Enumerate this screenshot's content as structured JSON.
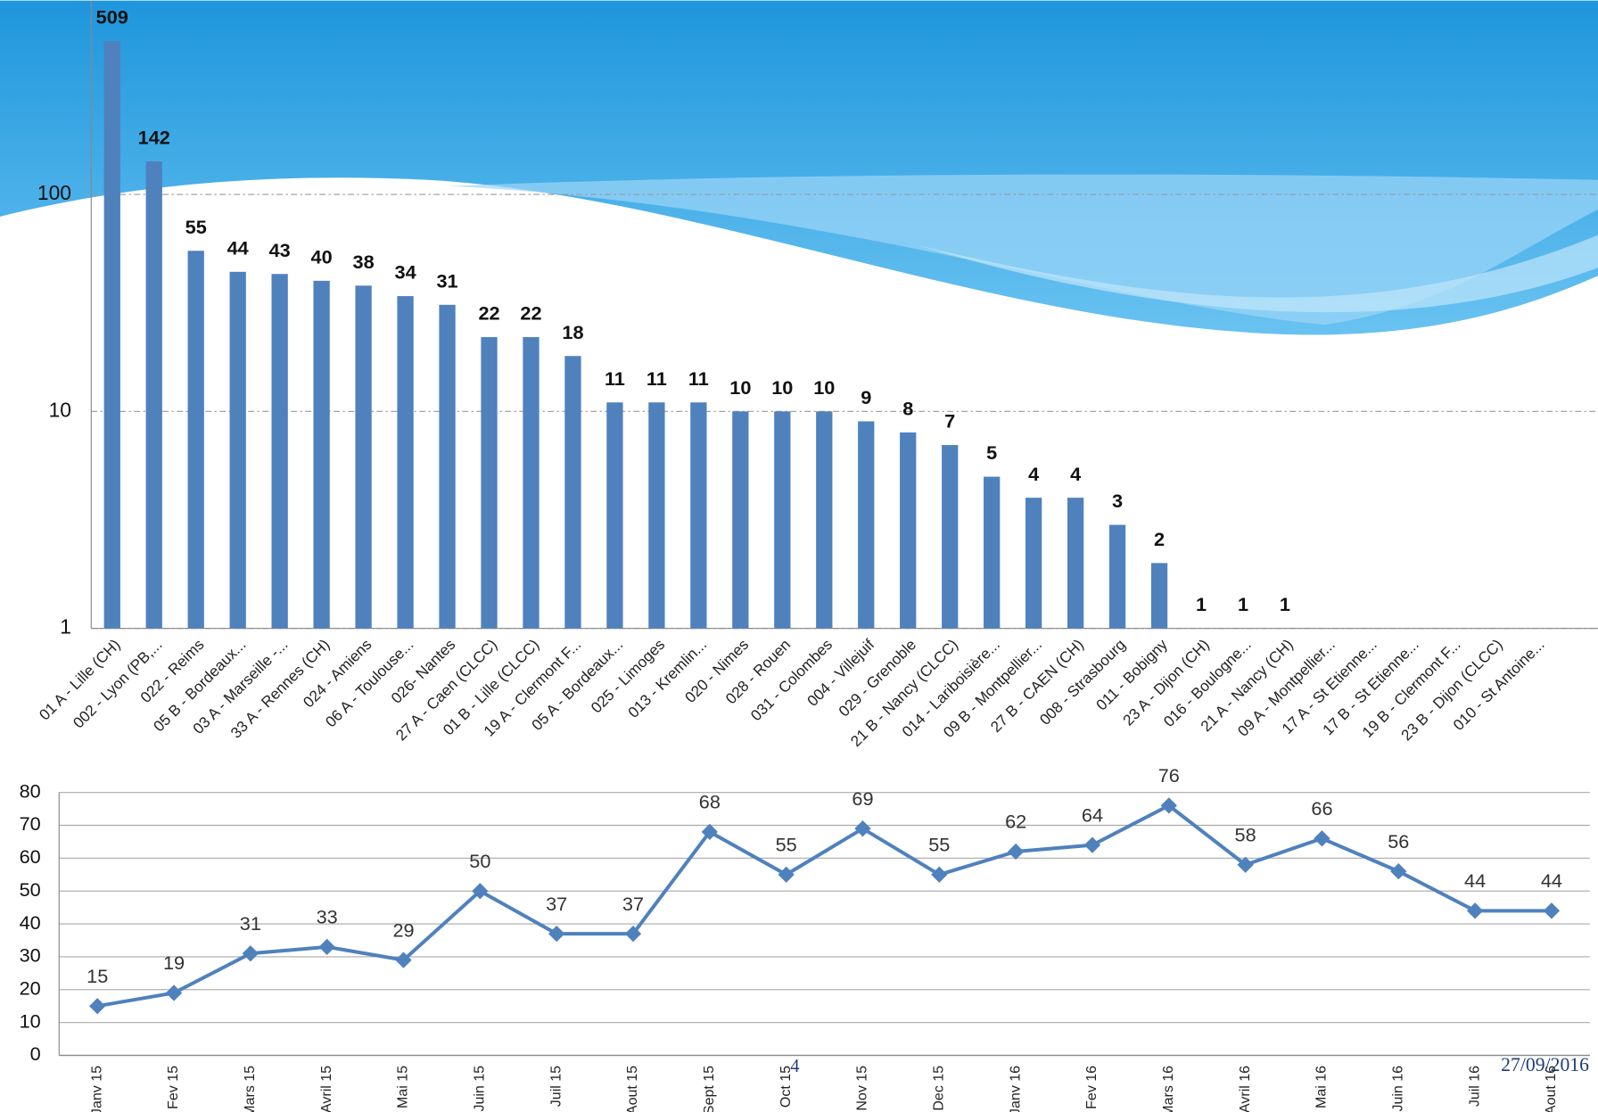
{
  "chart_data": [
    {
      "type": "bar",
      "log_scale": true,
      "grid": true,
      "color": "#4f81bd",
      "ylim": [
        1,
        800
      ],
      "yticks": [
        1,
        10,
        100
      ],
      "categories": [
        "01 A - Lille (CH)",
        "002 - Lyon (PB,...",
        "022 - Reims",
        "05 B - Bordeaux...",
        "03 A - Marseille -...",
        "33 A - Rennes (CH)",
        "024 - Amiens",
        "06 A - Toulouse...",
        "026- Nantes",
        "27 A - Caen (CLCC)",
        "01 B - Lille (CLCC)",
        "19 A - Clermont F...",
        "05 A - Bordeaux...",
        "025 - Limoges",
        "013 - Kremlin...",
        "020 - Nimes",
        "028 - Rouen",
        "031 - Colombes",
        "004 - Villejuif",
        "029 - Grenoble",
        "21 B - Nancy (CLCC)",
        "014 - Lariboisière...",
        "09 B - Montpellier...",
        "27 B - CAEN (CH)",
        "008 - Strasbourg",
        "011 - Bobigny",
        "23 A - Dijon (CH)",
        "016 - Boulogne...",
        "21 A - Nancy (CH)",
        "09 A - Montpellier...",
        "17 A - St Etienne...",
        "17 B - St Etienne...",
        "19 B - Clermont F...",
        "23 B - Dijon (CLCC)",
        "010 - St Antoine..."
      ],
      "values": [
        509,
        142,
        55,
        44,
        43,
        40,
        38,
        34,
        31,
        22,
        22,
        18,
        11,
        11,
        11,
        10,
        10,
        10,
        9,
        8,
        7,
        5,
        4,
        4,
        3,
        2,
        1,
        1,
        1,
        null,
        null,
        null,
        null,
        null,
        null
      ]
    },
    {
      "type": "line",
      "grid": true,
      "color": "#4f81bd",
      "ylim": [
        0,
        80
      ],
      "yticks": [
        0,
        10,
        20,
        30,
        40,
        50,
        60,
        70,
        80
      ],
      "categories": [
        "Janv 15",
        "Fev 15",
        "Mars 15",
        "Avril 15",
        "Mai 15",
        "Juin 15",
        "Juil 15",
        "Aout 15",
        "Sept 15",
        "Oct 15",
        "Nov 15",
        "Dec 15",
        "Janv 16",
        "Fev 16",
        "Mars 16",
        "Avril 16",
        "Mai 16",
        "Juin 16",
        "Juil 16",
        "Aout 16"
      ],
      "values": [
        15,
        19,
        31,
        33,
        29,
        50,
        37,
        37,
        68,
        55,
        69,
        55,
        62,
        64,
        76,
        58,
        66,
        56,
        44,
        44
      ]
    }
  ],
  "footer": {
    "page_number": "4",
    "date": "27/09/2016"
  }
}
